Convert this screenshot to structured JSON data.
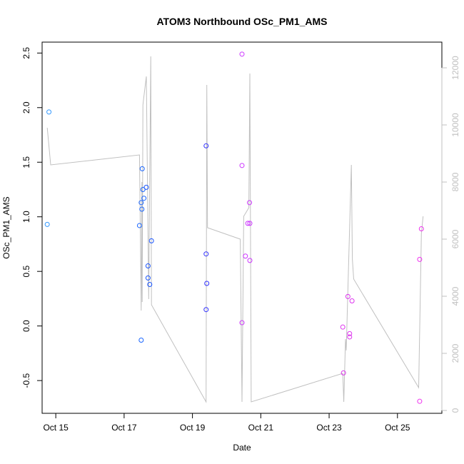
{
  "chart_data": {
    "type": "scatter",
    "title": "ATOM3 Northbound OSc_PM1_AMS",
    "xlabel": "Date",
    "ylabel": "OSc_PM1_AMS",
    "xlim": [
      14.6,
      26.3
    ],
    "ylim": [
      -0.8,
      2.6
    ],
    "x_ticks": [
      {
        "value": 15,
        "label": "Oct 15"
      },
      {
        "value": 17,
        "label": "Oct 17"
      },
      {
        "value": 19,
        "label": "Oct 19"
      },
      {
        "value": 21,
        "label": "Oct 21"
      },
      {
        "value": 23,
        "label": "Oct 23"
      },
      {
        "value": 25,
        "label": "Oct 25"
      }
    ],
    "y_ticks": [
      -0.5,
      0.0,
      0.5,
      1.0,
      1.5,
      2.0,
      2.5
    ],
    "y_tick_labels": [
      "-0.5",
      "0.0",
      "0.5",
      "1.0",
      "1.5",
      "2.0",
      "2.5"
    ],
    "y2lim": [
      -100,
      12900
    ],
    "y2_ticks": [
      0,
      2000,
      4000,
      6000,
      8000,
      10000,
      12000
    ],
    "y2_tick_labels": [
      "0",
      "2000",
      "4000",
      "6000",
      "8000",
      "10000",
      "12000"
    ],
    "grid": false,
    "series": [
      {
        "name": "OSc_PM1_AMS",
        "marker": "open-circle",
        "points": [
          {
            "x": 14.8,
            "y": 1.96,
            "color": "#3399ff"
          },
          {
            "x": 14.75,
            "y": 0.93,
            "color": "#3399ff"
          },
          {
            "x": 17.45,
            "y": 0.92,
            "color": "#1a66ff"
          },
          {
            "x": 17.5,
            "y": 1.13,
            "color": "#1a66ff"
          },
          {
            "x": 17.52,
            "y": 1.07,
            "color": "#1a66ff"
          },
          {
            "x": 17.53,
            "y": 1.44,
            "color": "#1a66ff"
          },
          {
            "x": 17.55,
            "y": 1.25,
            "color": "#1a66ff"
          },
          {
            "x": 17.58,
            "y": 1.17,
            "color": "#1a66ff"
          },
          {
            "x": 17.5,
            "y": -0.13,
            "color": "#1a66ff"
          },
          {
            "x": 17.65,
            "y": 1.27,
            "color": "#1a55ff"
          },
          {
            "x": 17.7,
            "y": 0.55,
            "color": "#1a55ff"
          },
          {
            "x": 17.7,
            "y": 0.44,
            "color": "#1a55ff"
          },
          {
            "x": 17.75,
            "y": 0.38,
            "color": "#1a55ff"
          },
          {
            "x": 17.8,
            "y": 0.78,
            "color": "#1a55ff"
          },
          {
            "x": 19.4,
            "y": 1.65,
            "color": "#3333ff"
          },
          {
            "x": 19.4,
            "y": 0.66,
            "color": "#3333ff"
          },
          {
            "x": 19.42,
            "y": 0.39,
            "color": "#3333ff"
          },
          {
            "x": 19.4,
            "y": 0.15,
            "color": "#3333ff"
          },
          {
            "x": 20.45,
            "y": 2.49,
            "color": "#cc33ff"
          },
          {
            "x": 20.45,
            "y": 1.47,
            "color": "#cc33ff"
          },
          {
            "x": 20.45,
            "y": 0.03,
            "color": "#cc33ff"
          },
          {
            "x": 20.55,
            "y": 0.64,
            "color": "#cc33ff"
          },
          {
            "x": 20.62,
            "y": 0.94,
            "color": "#cc33ff"
          },
          {
            "x": 20.67,
            "y": 1.13,
            "color": "#cc33ff"
          },
          {
            "x": 20.68,
            "y": 0.94,
            "color": "#cc33ff"
          },
          {
            "x": 20.68,
            "y": 0.6,
            "color": "#cc33ff"
          },
          {
            "x": 23.4,
            "y": -0.01,
            "color": "#dd33ee"
          },
          {
            "x": 23.42,
            "y": -0.43,
            "color": "#dd33ee"
          },
          {
            "x": 23.55,
            "y": 0.27,
            "color": "#dd33ee"
          },
          {
            "x": 23.6,
            "y": -0.07,
            "color": "#dd33ee"
          },
          {
            "x": 23.6,
            "y": -0.1,
            "color": "#dd33ee"
          },
          {
            "x": 23.67,
            "y": 0.23,
            "color": "#dd33ee"
          },
          {
            "x": 25.65,
            "y": 0.61,
            "color": "#ee33ee"
          },
          {
            "x": 25.7,
            "y": 0.89,
            "color": "#ee33ee"
          },
          {
            "x": 25.65,
            "y": -0.69,
            "color": "#ee33ee"
          }
        ]
      },
      {
        "name": "secondary-axis-line",
        "type": "line",
        "axis": "right",
        "color": "#c0c0c0",
        "points": [
          {
            "x": 14.75,
            "y": 9900
          },
          {
            "x": 14.85,
            "y": 8600
          },
          {
            "x": 17.45,
            "y": 8950
          },
          {
            "x": 17.5,
            "y": 3500
          },
          {
            "x": 17.52,
            "y": 8000
          },
          {
            "x": 17.53,
            "y": 3800
          },
          {
            "x": 17.55,
            "y": 10700
          },
          {
            "x": 17.58,
            "y": 11000
          },
          {
            "x": 17.65,
            "y": 11700
          },
          {
            "x": 17.72,
            "y": 3900
          },
          {
            "x": 17.78,
            "y": 12400
          },
          {
            "x": 17.8,
            "y": 3700
          },
          {
            "x": 19.4,
            "y": 300
          },
          {
            "x": 19.42,
            "y": 11400
          },
          {
            "x": 19.44,
            "y": 6400
          },
          {
            "x": 20.4,
            "y": 6000
          },
          {
            "x": 20.45,
            "y": 300
          },
          {
            "x": 20.5,
            "y": 6800
          },
          {
            "x": 20.65,
            "y": 7100
          },
          {
            "x": 20.68,
            "y": 11800
          },
          {
            "x": 20.72,
            "y": 300
          },
          {
            "x": 23.4,
            "y": 1300
          },
          {
            "x": 23.43,
            "y": 300
          },
          {
            "x": 23.48,
            "y": 2500
          },
          {
            "x": 23.5,
            "y": 2100
          },
          {
            "x": 23.65,
            "y": 8600
          },
          {
            "x": 23.68,
            "y": 5300
          },
          {
            "x": 23.72,
            "y": 4600
          },
          {
            "x": 25.62,
            "y": 800
          },
          {
            "x": 25.7,
            "y": 6200
          },
          {
            "x": 25.75,
            "y": 6800
          }
        ]
      }
    ]
  }
}
